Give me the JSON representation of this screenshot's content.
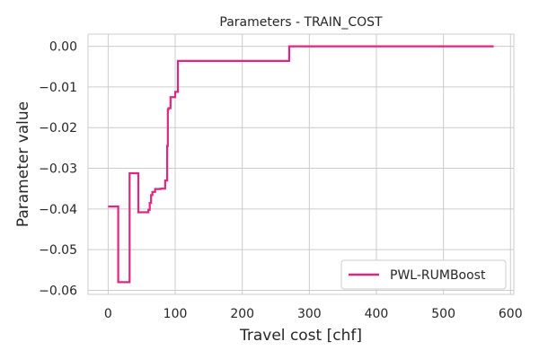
{
  "chart_data": {
    "type": "line",
    "title": "Parameters - TRAIN_COST",
    "xlabel": "Travel cost [chf]",
    "ylabel": "Parameter value",
    "xlim": [
      -30,
      605
    ],
    "ylim": [
      -0.061,
      0.003
    ],
    "xticks": [
      0,
      100,
      200,
      300,
      400,
      500,
      600
    ],
    "yticks": [
      0.0,
      -0.01,
      -0.02,
      -0.03,
      -0.04,
      -0.05,
      -0.06
    ],
    "xtick_labels": [
      "0",
      "100",
      "200",
      "300",
      "400",
      "500",
      "600"
    ],
    "ytick_labels": [
      "0.00",
      "−0.01",
      "−0.02",
      "−0.03",
      "−0.04",
      "−0.05",
      "−0.06"
    ],
    "grid": true,
    "legend_position": "lower-right",
    "series": [
      {
        "name": "PWL-RUMBoost",
        "color": "#e0267f",
        "step": "post",
        "x": [
          0,
          15,
          32,
          45,
          60,
          62,
          64,
          66,
          70,
          78,
          85,
          88,
          89,
          90,
          93,
          100,
          104,
          270,
          575
        ],
        "y": [
          -0.0394,
          -0.058,
          -0.0312,
          -0.0408,
          -0.0402,
          -0.0385,
          -0.0366,
          -0.0358,
          -0.0351,
          -0.035,
          -0.033,
          -0.0245,
          -0.0155,
          -0.0152,
          -0.0125,
          -0.0112,
          -0.0036,
          0.0,
          0.0
        ]
      }
    ]
  }
}
